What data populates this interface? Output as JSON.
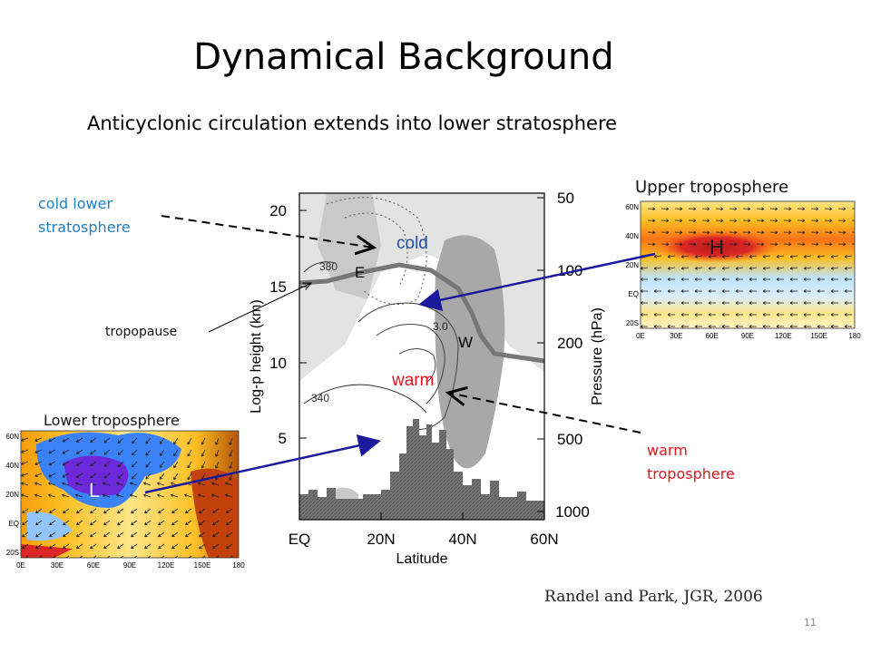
{
  "slide": {
    "title": "Dynamical Background",
    "subtitle": "Anticyclonic circulation extends into lower stratosphere",
    "citation": "Randel and Park, JGR, 2006",
    "page_number": "11"
  },
  "annotations": {
    "cold_lower_stratosphere": [
      "cold lower",
      "stratosphere"
    ],
    "tropopause": "tropopause",
    "warm_troposphere": [
      "warm",
      "troposphere"
    ],
    "upper_troposphere": "Upper troposphere",
    "lower_troposphere": "Lower troposphere"
  },
  "cross_section": {
    "xlabel": "Latitude",
    "ylabel_left": "Log-p height (km)",
    "ylabel_right": "Pressure (hPa)",
    "x_ticks": [
      "EQ",
      "20N",
      "40N",
      "60N"
    ],
    "y_ticks_left": [
      "5",
      "10",
      "15",
      "20"
    ],
    "y_ticks_right": [
      "50",
      "100",
      "200",
      "500",
      "1000"
    ],
    "labels": {
      "cold": "cold",
      "warm": "warm",
      "E": "E",
      "W": "W",
      "contour_380": "380",
      "contour_340": "340",
      "contour_3": "3.0"
    }
  },
  "upper_map": {
    "label": "H",
    "lat_ticks": [
      "60N",
      "40N",
      "20N",
      "EQ",
      "20S"
    ],
    "lon_ticks": [
      "0E",
      "30E",
      "60E",
      "90E",
      "120E",
      "150E",
      "180"
    ]
  },
  "lower_map": {
    "label": "L",
    "lat_ticks": [
      "60N",
      "40N",
      "20N",
      "EQ",
      "20S"
    ],
    "lon_ticks": [
      "0E",
      "30E",
      "60E",
      "90E",
      "120E",
      "150E",
      "180"
    ]
  },
  "colors": {
    "annotation_blue": "#1f7fc4",
    "annotation_red": "#e0141e",
    "arrow_navy": "#1a1a9c"
  }
}
